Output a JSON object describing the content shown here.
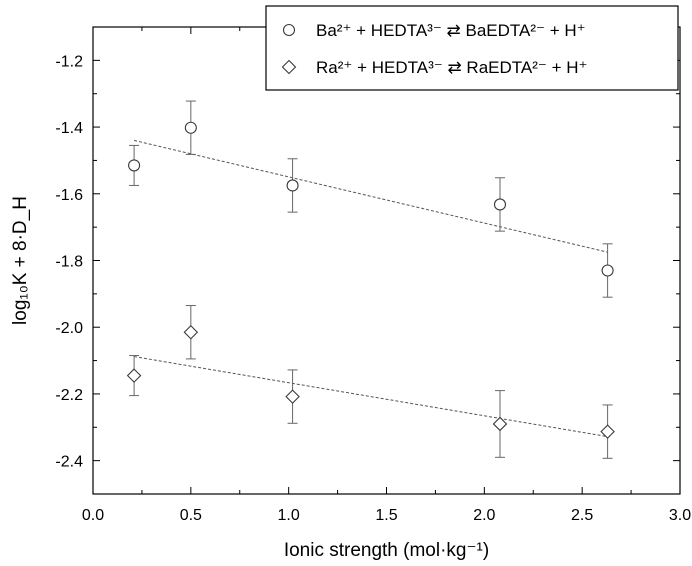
{
  "chart_data": {
    "type": "scatter",
    "xlabel": "Ionic strength (mol·kg⁻¹)",
    "ylabel": "log₁₀K + 8·D_H",
    "xlim": [
      0.0,
      3.0
    ],
    "ylim": [
      -2.5,
      -1.1
    ],
    "xticks": [
      "0.0",
      "0.5",
      "1.0",
      "1.5",
      "2.0",
      "2.5",
      "3.0"
    ],
    "yticks": [
      "-2.4",
      "-2.2",
      "-2.0",
      "-1.8",
      "-1.6",
      "-1.4",
      "-1.2"
    ],
    "grid": false,
    "legend_position": "top-right",
    "series": [
      {
        "name": "Ba²⁺ + HEDTA³⁻ ⇄ BaEDTA²⁻ + H⁺",
        "marker": "circle",
        "x": [
          0.21,
          0.5,
          1.02,
          2.08,
          2.63
        ],
        "y": [
          -1.515,
          -1.402,
          -1.575,
          -1.632,
          -1.83
        ],
        "err": [
          0.06,
          0.08,
          0.08,
          0.08,
          0.08
        ],
        "fit": {
          "x": [
            0.21,
            2.63
          ],
          "y": [
            -1.44,
            -1.775
          ]
        }
      },
      {
        "name": "Ra²⁺ + HEDTA³⁻ ⇄ RaEDTA²⁻ + H⁺",
        "marker": "diamond",
        "x": [
          0.21,
          0.5,
          1.02,
          2.08,
          2.63
        ],
        "y": [
          -2.145,
          -2.015,
          -2.208,
          -2.29,
          -2.313
        ],
        "err": [
          0.06,
          0.08,
          0.08,
          0.1,
          0.08
        ],
        "fit": {
          "x": [
            0.21,
            2.63
          ],
          "y": [
            -2.088,
            -2.328
          ]
        }
      }
    ]
  },
  "colors": {
    "axis": "#000000",
    "marker": "#3a3a3a",
    "fit_line": "#555555",
    "errorbar": "#666666"
  }
}
